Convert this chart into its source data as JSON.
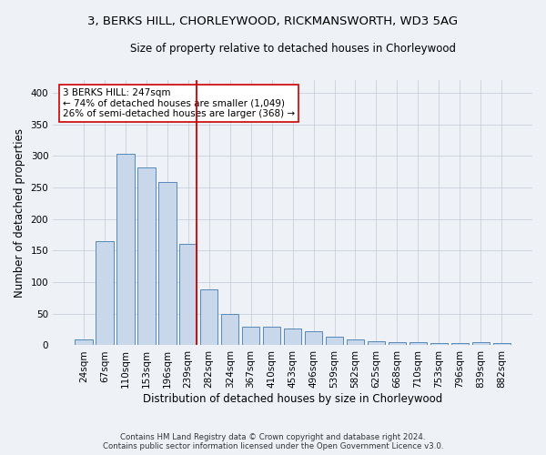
{
  "title_line1": "3, BERKS HILL, CHORLEYWOOD, RICKMANSWORTH, WD3 5AG",
  "title_line2": "Size of property relative to detached houses in Chorleywood",
  "xlabel": "Distribution of detached houses by size in Chorleywood",
  "ylabel": "Number of detached properties",
  "categories": [
    "24sqm",
    "67sqm",
    "110sqm",
    "153sqm",
    "196sqm",
    "239sqm",
    "282sqm",
    "324sqm",
    "367sqm",
    "410sqm",
    "453sqm",
    "496sqm",
    "539sqm",
    "582sqm",
    "625sqm",
    "668sqm",
    "710sqm",
    "753sqm",
    "796sqm",
    "839sqm",
    "882sqm"
  ],
  "values": [
    9,
    165,
    303,
    282,
    258,
    160,
    88,
    49,
    30,
    30,
    26,
    22,
    14,
    9,
    6,
    5,
    5,
    4,
    4,
    5,
    3
  ],
  "bar_color": "#c8d8ea",
  "bar_edge_color": "#5588bb",
  "grid_color": "#c8d0dc",
  "annotation_text": "3 BERKS HILL: 247sqm\n← 74% of detached houses are smaller (1,049)\n26% of semi-detached houses are larger (368) →",
  "vline_position": 5.42,
  "vline_color": "#cc0000",
  "ylim": [
    0,
    420
  ],
  "yticks": [
    0,
    50,
    100,
    150,
    200,
    250,
    300,
    350,
    400
  ],
  "footnote_line1": "Contains HM Land Registry data © Crown copyright and database right 2024.",
  "footnote_line2": "Contains public sector information licensed under the Open Government Licence v3.0.",
  "background_color": "#eef2f7",
  "axes_background": "#eef2f7",
  "title_fontsize": 9.5,
  "subtitle_fontsize": 8.5,
  "annot_fontsize": 7.5,
  "tick_fontsize": 7.5,
  "ylabel_fontsize": 8.5,
  "xlabel_fontsize": 8.5
}
